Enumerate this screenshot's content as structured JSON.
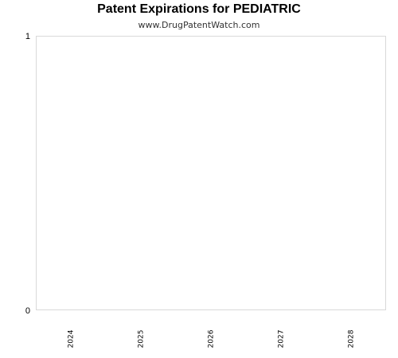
{
  "chart_data": {
    "type": "line",
    "title": "Patent Expirations for PEDIATRIC",
    "subtitle": "www.DrugPatentWatch.com",
    "xlabel": "",
    "ylabel": "",
    "categories": [
      "2024",
      "2025",
      "2026",
      "2027",
      "2028"
    ],
    "y_ticks": [
      "1",
      "0"
    ],
    "ylim": [
      0,
      1
    ],
    "series": [],
    "grid": false,
    "colors": {
      "plot_border": "#d9d9d9",
      "background": "#ffffff"
    }
  }
}
